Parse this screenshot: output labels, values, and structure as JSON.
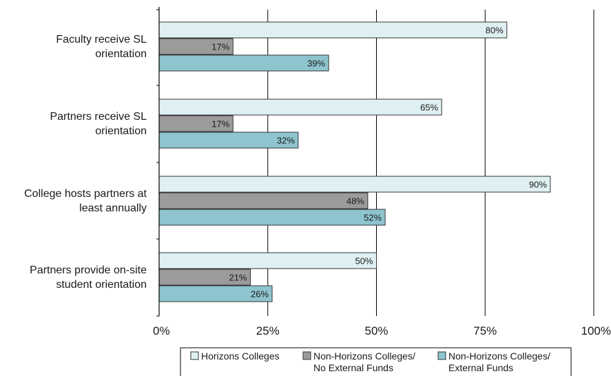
{
  "chart_data": {
    "type": "bar",
    "orientation": "horizontal",
    "title": "",
    "xlabel": "",
    "ylabel": "",
    "xlim": [
      0,
      100
    ],
    "value_suffix": "%",
    "x_ticks": [
      "0%",
      "25%",
      "50%",
      "75%",
      "100%"
    ],
    "x_tick_values": [
      0,
      25,
      50,
      75,
      100
    ],
    "grid": "vertical",
    "legend_position": "bottom",
    "categories": [
      [
        "Faculty receive SL",
        "orientation"
      ],
      [
        "Partners receive SL",
        "orientation"
      ],
      [
        "College hosts partners at",
        "least annually"
      ],
      [
        "Partners provide on-site",
        "student orientation"
      ]
    ],
    "series": [
      {
        "name": [
          "Horizons Colleges"
        ],
        "color": "#dff0f2",
        "values": [
          80,
          65,
          90,
          50
        ],
        "labels": [
          "80%",
          "65%",
          "90%",
          "50%"
        ]
      },
      {
        "name": [
          "Non-Horizons Colleges/",
          "No External Funds"
        ],
        "color": "#9c9b9c",
        "values": [
          17,
          17,
          48,
          21
        ],
        "labels": [
          "17%",
          "17%",
          "48%",
          "21%"
        ]
      },
      {
        "name": [
          "Non-Horizons Colleges/",
          "External Funds"
        ],
        "color": "#8ec4cd",
        "values": [
          39,
          32,
          52,
          26
        ],
        "labels": [
          "39%",
          "32%",
          "52%",
          "26%"
        ]
      }
    ]
  }
}
